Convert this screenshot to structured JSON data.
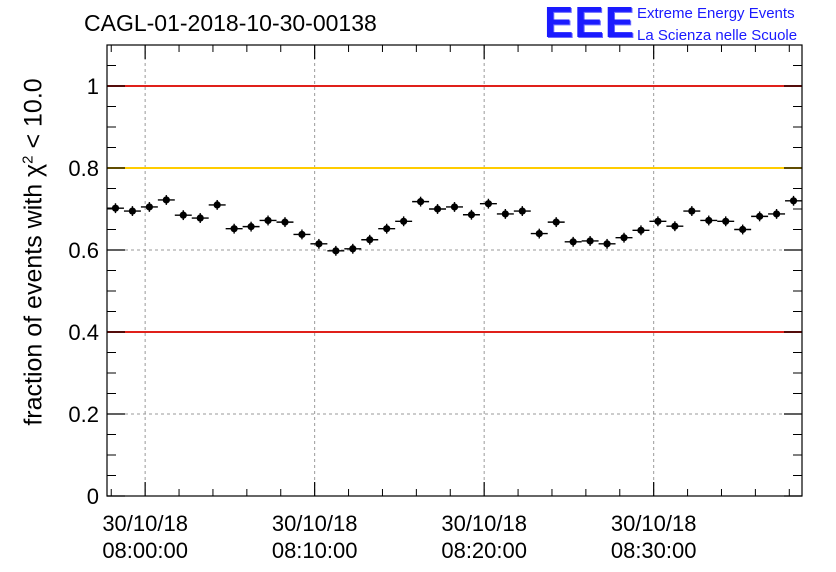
{
  "header": {
    "run_title": "CAGL-01-2018-10-30-00138"
  },
  "logo": {
    "mark": "EEE",
    "line1": "Extreme Energy Events",
    "line2": "La Scienza nelle Scuole"
  },
  "colors": {
    "red_line": "#e0201a",
    "yellow_line": "#ffcc00",
    "logo_blue": "#1a1aff",
    "marker": "#000000",
    "grid": "#9a9a9a"
  },
  "chart_data": {
    "type": "scatter",
    "ylabel": "fraction of events with χ² < 10.0",
    "ylabel_base": "fraction of events with ",
    "ylabel_sym": "χ",
    "ylabel_sup": "2",
    "ylabel_tail": " < 10.0",
    "xlim": [
      "2018-10-30 07:57:45",
      "2018-10-30 08:38:45"
    ],
    "ylim": [
      0,
      1.1
    ],
    "grid": true,
    "x_ticks": [
      {
        "date": "30/10/18",
        "time": "08:00:00"
      },
      {
        "date": "30/10/18",
        "time": "08:10:00"
      },
      {
        "date": "30/10/18",
        "time": "08:20:00"
      },
      {
        "date": "30/10/18",
        "time": "08:30:00"
      }
    ],
    "y_ticks": [
      "0",
      "0.2",
      "0.4",
      "0.6",
      "0.8",
      "1"
    ],
    "reference_lines": [
      {
        "y": 1.0,
        "color": "red"
      },
      {
        "y": 0.8,
        "color": "yellow"
      },
      {
        "y": 0.4,
        "color": "red"
      }
    ],
    "series": [
      {
        "x": [
          "07:58:15",
          "07:59:15",
          "08:00:15",
          "08:01:15",
          "08:02:15",
          "08:03:15",
          "08:04:15",
          "08:05:15",
          "08:06:15",
          "08:07:15",
          "08:08:15",
          "08:09:15",
          "08:10:15",
          "08:11:15",
          "08:12:15",
          "08:13:15",
          "08:14:15",
          "08:15:15",
          "08:16:15",
          "08:17:15",
          "08:18:15",
          "08:19:15",
          "08:20:15",
          "08:21:15",
          "08:22:15",
          "08:23:15",
          "08:24:15",
          "08:25:15",
          "08:26:15",
          "08:27:15",
          "08:28:15",
          "08:29:15",
          "08:30:15",
          "08:31:15",
          "08:32:15",
          "08:33:15",
          "08:34:15",
          "08:35:15",
          "08:36:15",
          "08:37:15",
          "08:38:15"
        ],
        "y": [
          0.702,
          0.695,
          0.705,
          0.722,
          0.685,
          0.678,
          0.71,
          0.652,
          0.657,
          0.672,
          0.668,
          0.638,
          0.615,
          0.598,
          0.603,
          0.625,
          0.652,
          0.67,
          0.718,
          0.7,
          0.705,
          0.686,
          0.713,
          0.688,
          0.695,
          0.64,
          0.668,
          0.62,
          0.622,
          0.615,
          0.63,
          0.648,
          0.67,
          0.658,
          0.695,
          0.672,
          0.67,
          0.65,
          0.682,
          0.688,
          0.72
        ],
        "y_err": [
          0.012,
          0.012,
          0.012,
          0.012,
          0.012,
          0.012,
          0.012,
          0.012,
          0.012,
          0.012,
          0.012,
          0.012,
          0.012,
          0.012,
          0.012,
          0.012,
          0.012,
          0.012,
          0.012,
          0.012,
          0.012,
          0.012,
          0.012,
          0.012,
          0.012,
          0.012,
          0.012,
          0.012,
          0.012,
          0.012,
          0.012,
          0.012,
          0.012,
          0.012,
          0.012,
          0.012,
          0.012,
          0.012,
          0.012,
          0.012,
          0.012
        ]
      }
    ]
  }
}
